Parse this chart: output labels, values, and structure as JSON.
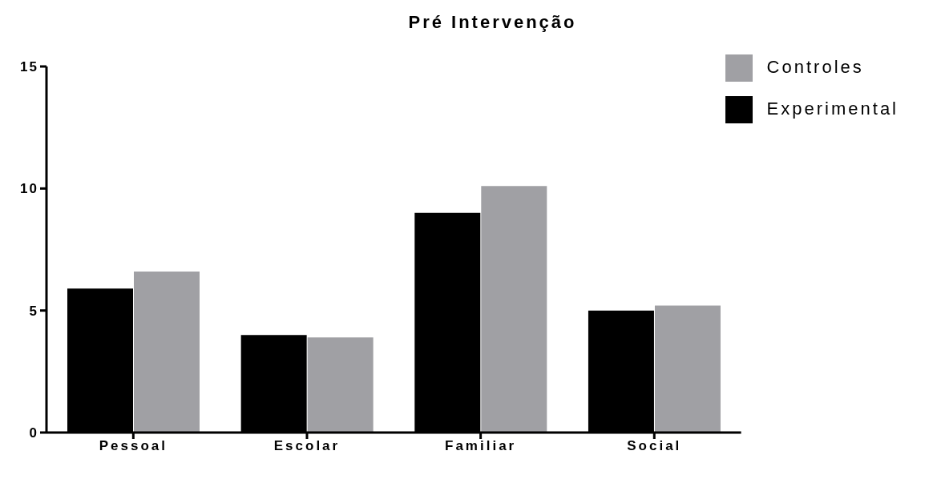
{
  "chart_data": {
    "type": "bar",
    "title": "Pré Intervenção",
    "categories": [
      "Pessoal",
      "Escolar",
      "Familiar",
      "Social"
    ],
    "series": [
      {
        "name": "Experimental",
        "color": "#000000",
        "values": [
          5.9,
          4.0,
          9.0,
          5.0
        ]
      },
      {
        "name": "Controles",
        "color": "#a0a0a4",
        "values": [
          6.6,
          3.9,
          10.1,
          5.2
        ]
      }
    ],
    "ylim": [
      0,
      15
    ],
    "yticks": [
      0,
      5,
      10,
      15
    ],
    "grid": false,
    "legend": "top right"
  }
}
